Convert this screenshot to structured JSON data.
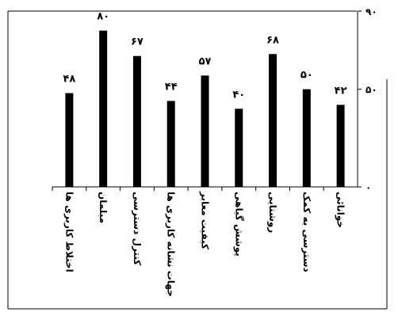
{
  "chart_data": {
    "type": "bar",
    "categories": [
      "اختلاط کاربری ها",
      "مبلمان",
      "کنترل دسترسی",
      "جهات نشانه کاربری ها",
      "کیفیت معابر",
      "پوشش گیاهی",
      "روشنایی",
      "دسترسی به کمک",
      "خوانائی"
    ],
    "values": [
      48,
      80,
      67,
      44,
      57,
      40,
      68,
      50,
      42
    ],
    "value_labels": [
      "۴۸",
      "۸۰",
      "۶۷",
      "۴۴",
      "۵۷",
      "۴۰",
      "۶۸",
      "۵۰",
      "۴۲"
    ],
    "y_ticks": [
      {
        "value": 0,
        "label": "۰"
      },
      {
        "value": 50,
        "label": "۵۰"
      },
      {
        "value": 90,
        "label": "۹۰"
      }
    ],
    "ylim": [
      0,
      90
    ],
    "y_axis_side": "right",
    "grid": false,
    "bar_color": "#000000"
  }
}
